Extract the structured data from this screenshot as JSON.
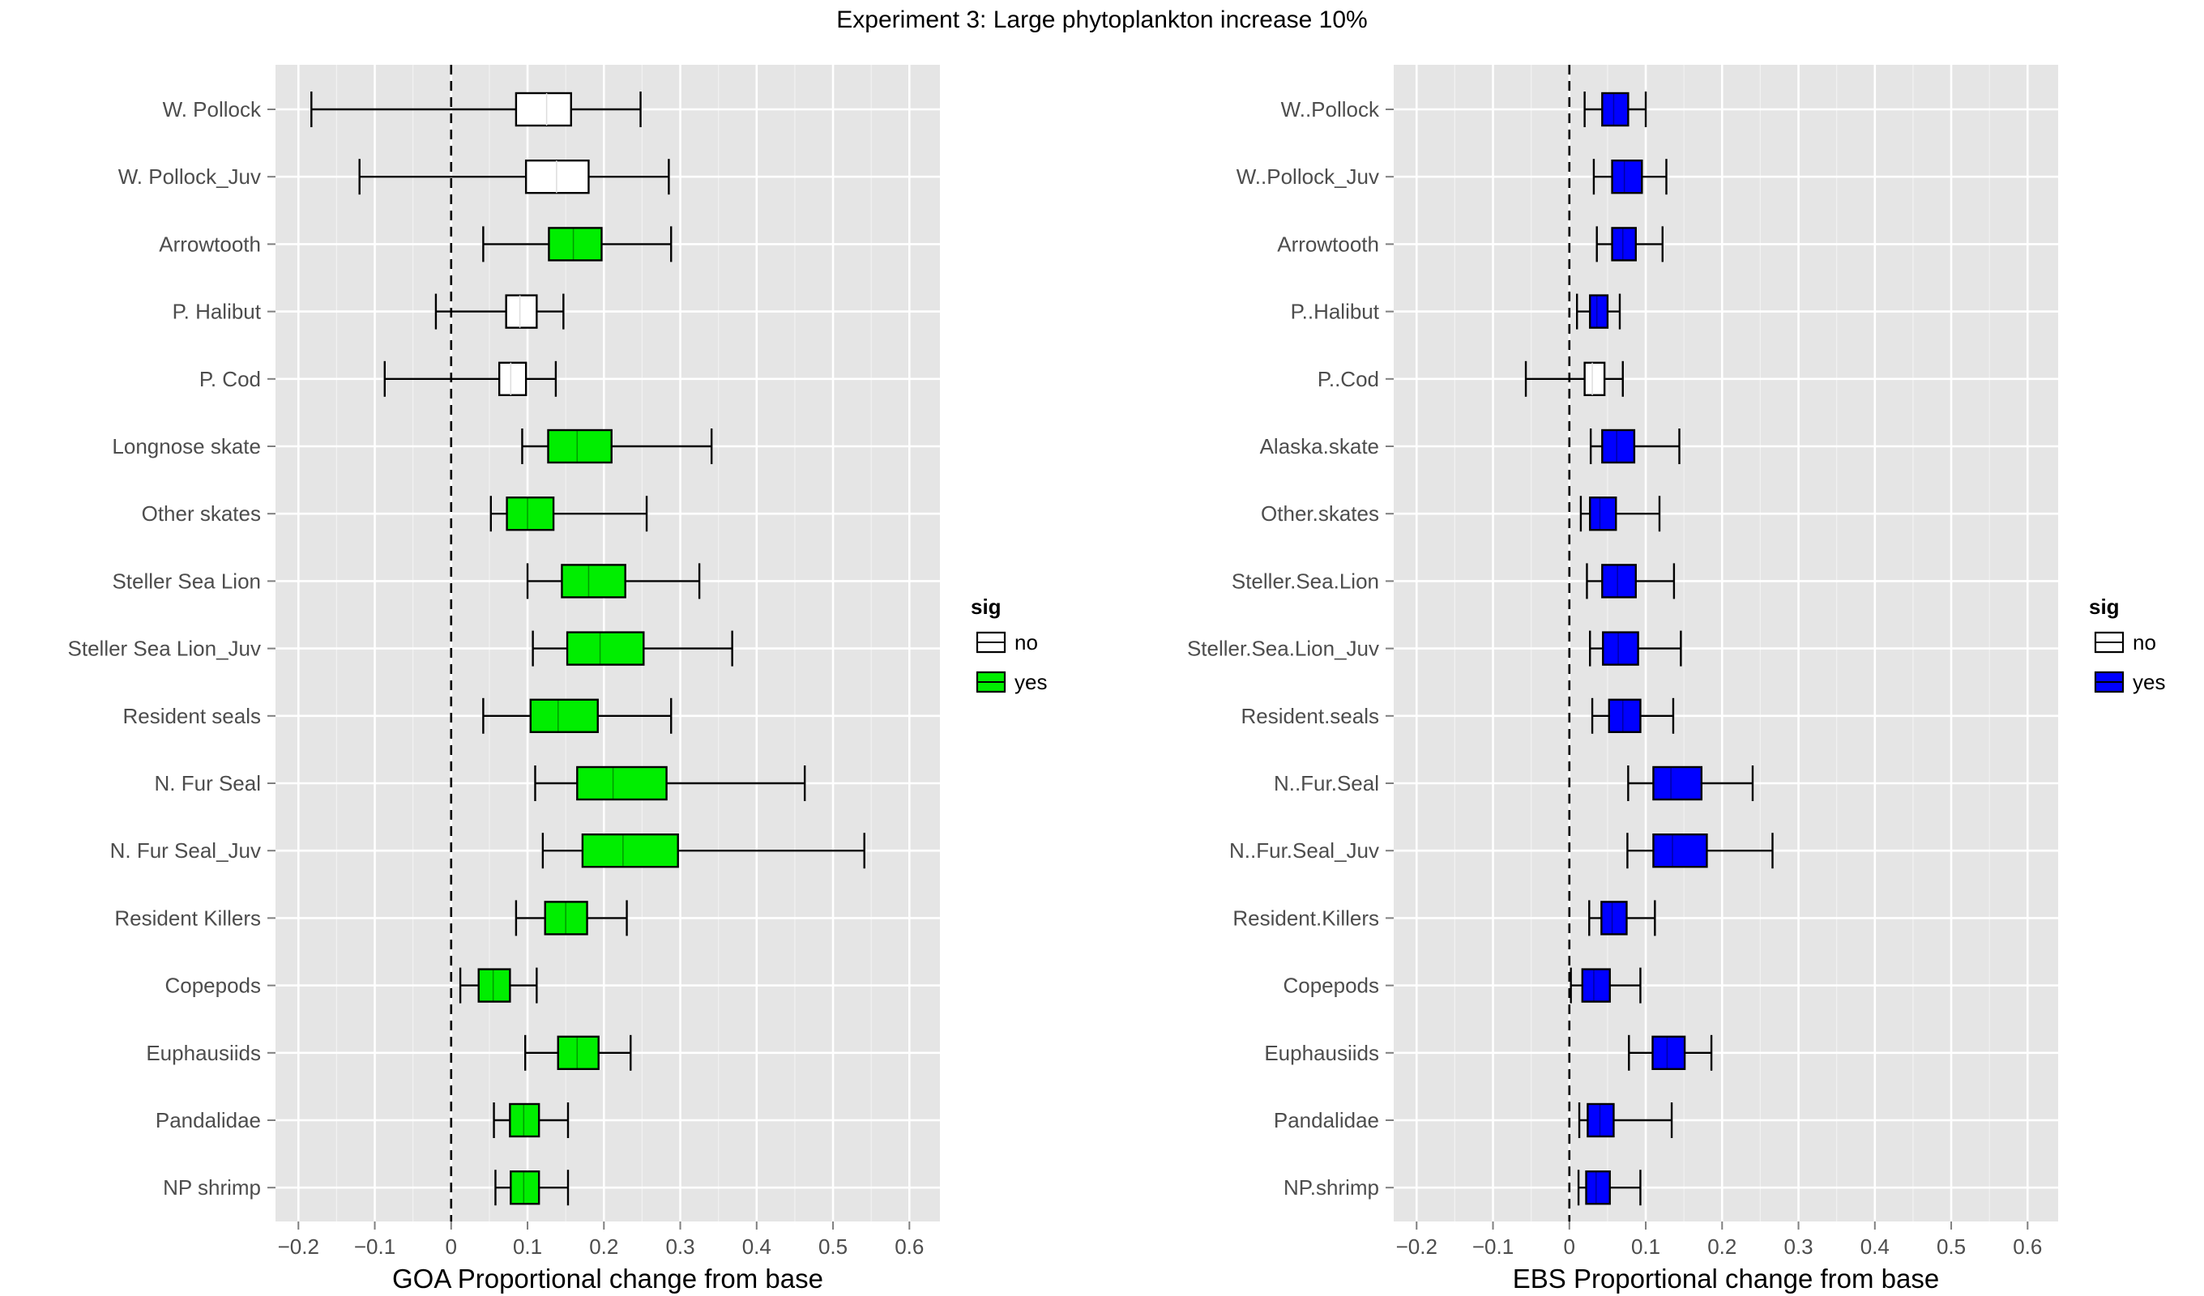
{
  "title": "Experiment 3: Large phytoplankton increase 10%",
  "chart_data": [
    {
      "type": "boxplot",
      "orientation": "horizontal",
      "xlabel": "GOA Proportional change from base",
      "xlim": [
        -0.23,
        0.64
      ],
      "xticks": [
        -0.2,
        -0.1,
        0,
        0.1,
        0.2,
        0.3,
        0.4,
        0.5,
        0.6
      ],
      "xtick_labels": [
        "−0.2",
        "−0.1",
        "0",
        "0.1",
        "0.2",
        "0.3",
        "0.4",
        "0.5",
        "0.6"
      ],
      "reference_line": 0,
      "grid": true,
      "legend": {
        "title": "sig",
        "position": "right",
        "entries": [
          {
            "label": "no",
            "color": "#ffffff"
          },
          {
            "label": "yes",
            "color": "#00ee00"
          }
        ]
      },
      "groups": [
        {
          "label": "W. Pollock",
          "sig": "no",
          "whisker_low": -0.183,
          "q1": 0.085,
          "median": 0.125,
          "q3": 0.157,
          "whisker_high": 0.248
        },
        {
          "label": "W. Pollock_Juv",
          "sig": "no",
          "whisker_low": -0.12,
          "q1": 0.098,
          "median": 0.138,
          "q3": 0.18,
          "whisker_high": 0.285
        },
        {
          "label": "Arrowtooth",
          "sig": "yes",
          "whisker_low": 0.042,
          "q1": 0.128,
          "median": 0.16,
          "q3": 0.197,
          "whisker_high": 0.288
        },
        {
          "label": "P. Halibut",
          "sig": "no",
          "whisker_low": -0.02,
          "q1": 0.072,
          "median": 0.09,
          "q3": 0.112,
          "whisker_high": 0.147
        },
        {
          "label": "P. Cod",
          "sig": "no",
          "whisker_low": -0.087,
          "q1": 0.063,
          "median": 0.078,
          "q3": 0.098,
          "whisker_high": 0.137
        },
        {
          "label": "Longnose skate",
          "sig": "yes",
          "whisker_low": 0.093,
          "q1": 0.127,
          "median": 0.165,
          "q3": 0.21,
          "whisker_high": 0.341
        },
        {
          "label": "Other skates",
          "sig": "yes",
          "whisker_low": 0.052,
          "q1": 0.073,
          "median": 0.1,
          "q3": 0.134,
          "whisker_high": 0.256
        },
        {
          "label": "Steller Sea Lion",
          "sig": "yes",
          "whisker_low": 0.1,
          "q1": 0.145,
          "median": 0.18,
          "q3": 0.228,
          "whisker_high": 0.325
        },
        {
          "label": "Steller Sea Lion_Juv",
          "sig": "yes",
          "whisker_low": 0.107,
          "q1": 0.152,
          "median": 0.195,
          "q3": 0.252,
          "whisker_high": 0.368
        },
        {
          "label": "Resident seals",
          "sig": "yes",
          "whisker_low": 0.042,
          "q1": 0.104,
          "median": 0.14,
          "q3": 0.192,
          "whisker_high": 0.288
        },
        {
          "label": "N. Fur Seal",
          "sig": "yes",
          "whisker_low": 0.11,
          "q1": 0.165,
          "median": 0.212,
          "q3": 0.282,
          "whisker_high": 0.463
        },
        {
          "label": "N. Fur Seal_Juv",
          "sig": "yes",
          "whisker_low": 0.12,
          "q1": 0.172,
          "median": 0.225,
          "q3": 0.297,
          "whisker_high": 0.541
        },
        {
          "label": "Resident Killers",
          "sig": "yes",
          "whisker_low": 0.085,
          "q1": 0.123,
          "median": 0.15,
          "q3": 0.178,
          "whisker_high": 0.23
        },
        {
          "label": "Copepods",
          "sig": "yes",
          "whisker_low": 0.012,
          "q1": 0.036,
          "median": 0.055,
          "q3": 0.077,
          "whisker_high": 0.112
        },
        {
          "label": "Euphausiids",
          "sig": "yes",
          "whisker_low": 0.097,
          "q1": 0.14,
          "median": 0.165,
          "q3": 0.193,
          "whisker_high": 0.235
        },
        {
          "label": "Pandalidae",
          "sig": "yes",
          "whisker_low": 0.056,
          "q1": 0.077,
          "median": 0.095,
          "q3": 0.115,
          "whisker_high": 0.153
        },
        {
          "label": "NP shrimp",
          "sig": "yes",
          "whisker_low": 0.058,
          "q1": 0.078,
          "median": 0.095,
          "q3": 0.115,
          "whisker_high": 0.153
        }
      ]
    },
    {
      "type": "boxplot",
      "orientation": "horizontal",
      "xlabel": "EBS Proportional change from base",
      "xlim": [
        -0.23,
        0.64
      ],
      "xticks": [
        -0.2,
        -0.1,
        0,
        0.1,
        0.2,
        0.3,
        0.4,
        0.5,
        0.6
      ],
      "xtick_labels": [
        "−0.2",
        "−0.1",
        "0",
        "0.1",
        "0.2",
        "0.3",
        "0.4",
        "0.5",
        "0.6"
      ],
      "reference_line": 0,
      "grid": true,
      "legend": {
        "title": "sig",
        "position": "right",
        "entries": [
          {
            "label": "no",
            "color": "#ffffff"
          },
          {
            "label": "yes",
            "color": "#0000ff"
          }
        ]
      },
      "groups": [
        {
          "label": "W..Pollock",
          "sig": "yes",
          "whisker_low": 0.02,
          "q1": 0.043,
          "median": 0.058,
          "q3": 0.077,
          "whisker_high": 0.1
        },
        {
          "label": "W..Pollock_Juv",
          "sig": "yes",
          "whisker_low": 0.032,
          "q1": 0.056,
          "median": 0.072,
          "q3": 0.095,
          "whisker_high": 0.127
        },
        {
          "label": "Arrowtooth",
          "sig": "yes",
          "whisker_low": 0.036,
          "q1": 0.056,
          "median": 0.07,
          "q3": 0.087,
          "whisker_high": 0.122
        },
        {
          "label": "P..Halibut",
          "sig": "yes",
          "whisker_low": 0.01,
          "q1": 0.027,
          "median": 0.036,
          "q3": 0.05,
          "whisker_high": 0.066
        },
        {
          "label": "P..Cod",
          "sig": "no",
          "whisker_low": -0.057,
          "q1": 0.02,
          "median": 0.03,
          "q3": 0.046,
          "whisker_high": 0.07
        },
        {
          "label": "Alaska.skate",
          "sig": "yes",
          "whisker_low": 0.028,
          "q1": 0.043,
          "median": 0.062,
          "q3": 0.085,
          "whisker_high": 0.144
        },
        {
          "label": "Other.skates",
          "sig": "yes",
          "whisker_low": 0.015,
          "q1": 0.027,
          "median": 0.04,
          "q3": 0.061,
          "whisker_high": 0.118
        },
        {
          "label": "Steller.Sea.Lion",
          "sig": "yes",
          "whisker_low": 0.023,
          "q1": 0.043,
          "median": 0.063,
          "q3": 0.087,
          "whisker_high": 0.137
        },
        {
          "label": "Steller.Sea.Lion_Juv",
          "sig": "yes",
          "whisker_low": 0.027,
          "q1": 0.044,
          "median": 0.064,
          "q3": 0.09,
          "whisker_high": 0.146
        },
        {
          "label": "Resident.seals",
          "sig": "yes",
          "whisker_low": 0.03,
          "q1": 0.052,
          "median": 0.07,
          "q3": 0.093,
          "whisker_high": 0.136
        },
        {
          "label": "N..Fur.Seal",
          "sig": "yes",
          "whisker_low": 0.077,
          "q1": 0.11,
          "median": 0.133,
          "q3": 0.173,
          "whisker_high": 0.24
        },
        {
          "label": "N..Fur.Seal_Juv",
          "sig": "yes",
          "whisker_low": 0.076,
          "q1": 0.11,
          "median": 0.135,
          "q3": 0.18,
          "whisker_high": 0.266
        },
        {
          "label": "Resident.Killers",
          "sig": "yes",
          "whisker_low": 0.026,
          "q1": 0.042,
          "median": 0.056,
          "q3": 0.075,
          "whisker_high": 0.112
        },
        {
          "label": "Copepods",
          "sig": "yes",
          "whisker_low": 0.002,
          "q1": 0.017,
          "median": 0.032,
          "q3": 0.053,
          "whisker_high": 0.093
        },
        {
          "label": "Euphausiids",
          "sig": "yes",
          "whisker_low": 0.078,
          "q1": 0.109,
          "median": 0.128,
          "q3": 0.151,
          "whisker_high": 0.186
        },
        {
          "label": "Pandalidae",
          "sig": "yes",
          "whisker_low": 0.013,
          "q1": 0.024,
          "median": 0.04,
          "q3": 0.058,
          "whisker_high": 0.134
        },
        {
          "label": "NP.shrimp",
          "sig": "yes",
          "whisker_low": 0.012,
          "q1": 0.022,
          "median": 0.035,
          "q3": 0.053,
          "whisker_high": 0.093
        }
      ]
    }
  ]
}
